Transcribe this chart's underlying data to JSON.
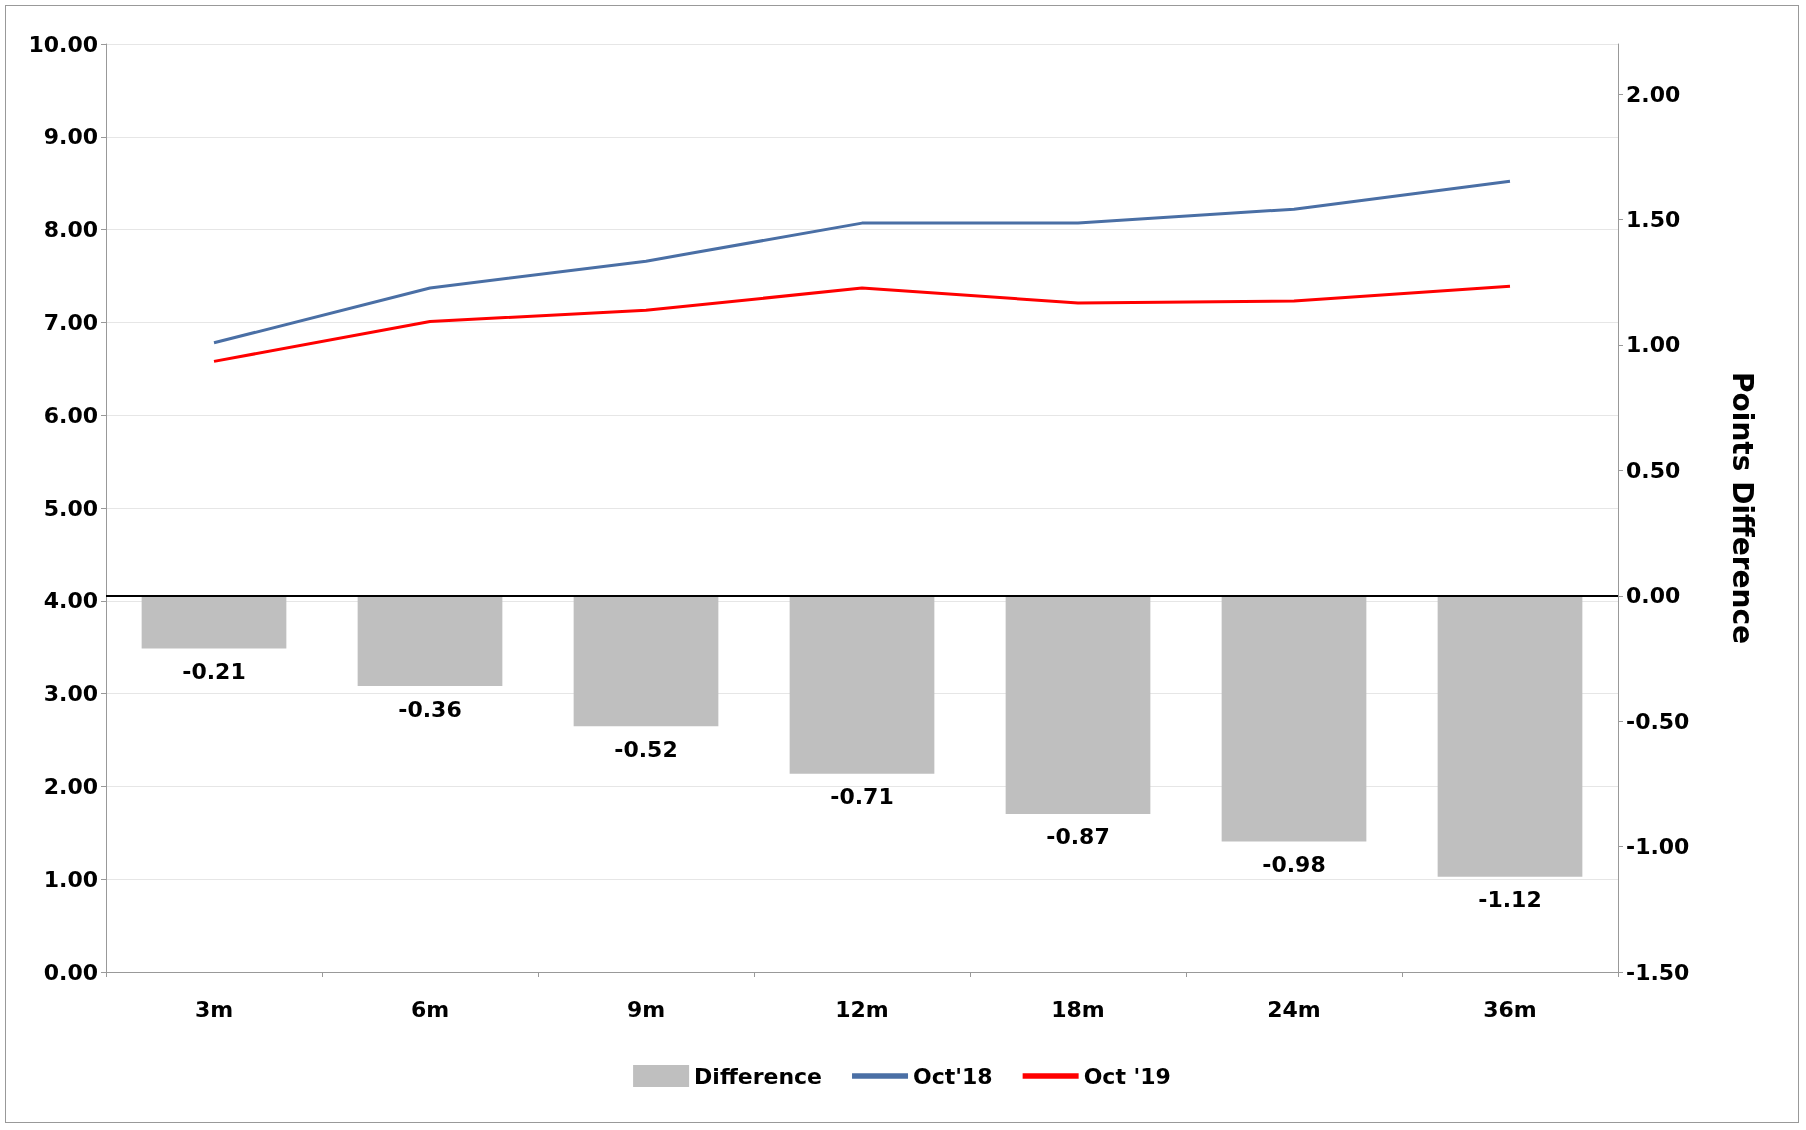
{
  "chart_data": {
    "type": "bar",
    "categories": [
      "3m",
      "6m",
      "9m",
      "12m",
      "18m",
      "24m",
      "36m"
    ],
    "series": [
      {
        "name": "Difference",
        "axis": "y2",
        "color": "#bfbfbf",
        "values": [
          -0.21,
          -0.36,
          -0.52,
          -0.71,
          -0.87,
          -0.98,
          -1.12
        ],
        "value_labels": [
          "-0.21",
          "-0.36",
          "-0.52",
          "-0.71",
          "-0.87",
          "-0.98",
          "-1.12"
        ]
      },
      {
        "name": "Oct'18",
        "type": "line",
        "color": "#4a6fa5",
        "values": [
          6.78,
          7.37,
          7.66,
          8.07,
          8.07,
          8.22,
          8.52
        ]
      },
      {
        "name": "Oct '19",
        "type": "line",
        "color": "#ff0000",
        "values": [
          6.58,
          7.01,
          7.13,
          7.37,
          7.21,
          7.23,
          7.39
        ]
      }
    ],
    "y2label": "Points Difference",
    "ylim": [
      0,
      10
    ],
    "yticks": [
      {
        "value": 0,
        "label": "0.00"
      },
      {
        "value": 1,
        "label": "1.00"
      },
      {
        "value": 2,
        "label": "2.00"
      },
      {
        "value": 3,
        "label": "3.00"
      },
      {
        "value": 4,
        "label": "4.00"
      },
      {
        "value": 5,
        "label": "5.00"
      },
      {
        "value": 6,
        "label": "6.00"
      },
      {
        "value": 7,
        "label": "7.00"
      },
      {
        "value": 8,
        "label": "8.00"
      },
      {
        "value": 9,
        "label": "9.00"
      },
      {
        "value": 10,
        "label": "10.00"
      }
    ],
    "y2lim": [
      -1.5,
      2.2
    ],
    "y2ticks": [
      {
        "value": -1.5,
        "label": "-1.50"
      },
      {
        "value": -1,
        "label": "-1.00"
      },
      {
        "value": -0.5,
        "label": "-0.50"
      },
      {
        "value": 0,
        "label": "0.00"
      },
      {
        "value": 0.5,
        "label": "0.50"
      },
      {
        "value": 1,
        "label": "1.00"
      },
      {
        "value": 1.5,
        "label": "1.50"
      },
      {
        "value": 2,
        "label": "2.00"
      }
    ],
    "ref_lines": [
      {
        "axis": "y2",
        "value": 0,
        "color": "#000000"
      }
    ],
    "grid": "y",
    "legend": "bottom",
    "marker": "none",
    "line_style": "solid"
  }
}
